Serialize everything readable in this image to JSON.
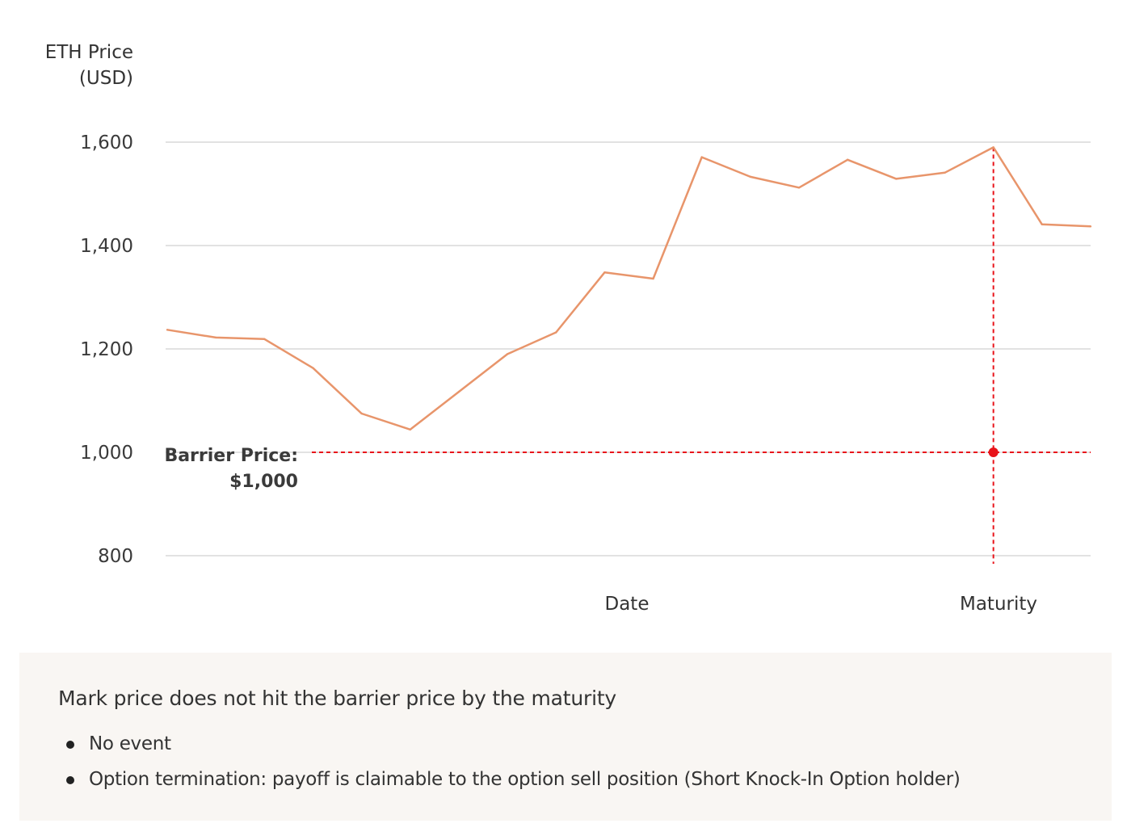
{
  "chart_data": {
    "type": "line",
    "ylabel": "ETH Price (USD)",
    "ylabel_lines": [
      "ETH Price",
      "(USD)"
    ],
    "xlabel": "Date",
    "ylim": [
      800,
      1600
    ],
    "yticks": [
      {
        "value": 1600,
        "label": "1,600"
      },
      {
        "value": 1400,
        "label": "1,400"
      },
      {
        "value": 1200,
        "label": "1,200"
      },
      {
        "value": 1000,
        "label": "1,000"
      },
      {
        "value": 800,
        "label": "800"
      }
    ],
    "grid": true,
    "series": [
      {
        "color": "#e8956b",
        "values": [
          1237,
          1222,
          1219,
          1163,
          1075,
          1044,
          1117,
          1190,
          1232,
          1348,
          1336,
          1571,
          1533,
          1512,
          1566,
          1529,
          1541,
          1590,
          1441,
          1437
        ]
      }
    ],
    "barrier": {
      "value": 1000,
      "label_lines": [
        "Barrier Price:",
        "$1,000"
      ],
      "color": "#e8131a"
    },
    "maturity": {
      "index": 17,
      "label": "Maturity",
      "color": "#e8131a"
    }
  },
  "info": {
    "title": "Mark price does not hit the barrier price by the maturity",
    "bullets": [
      "No event",
      "Option termination: payoff is claimable to the option sell position (Short Knock-In Option holder)"
    ]
  }
}
